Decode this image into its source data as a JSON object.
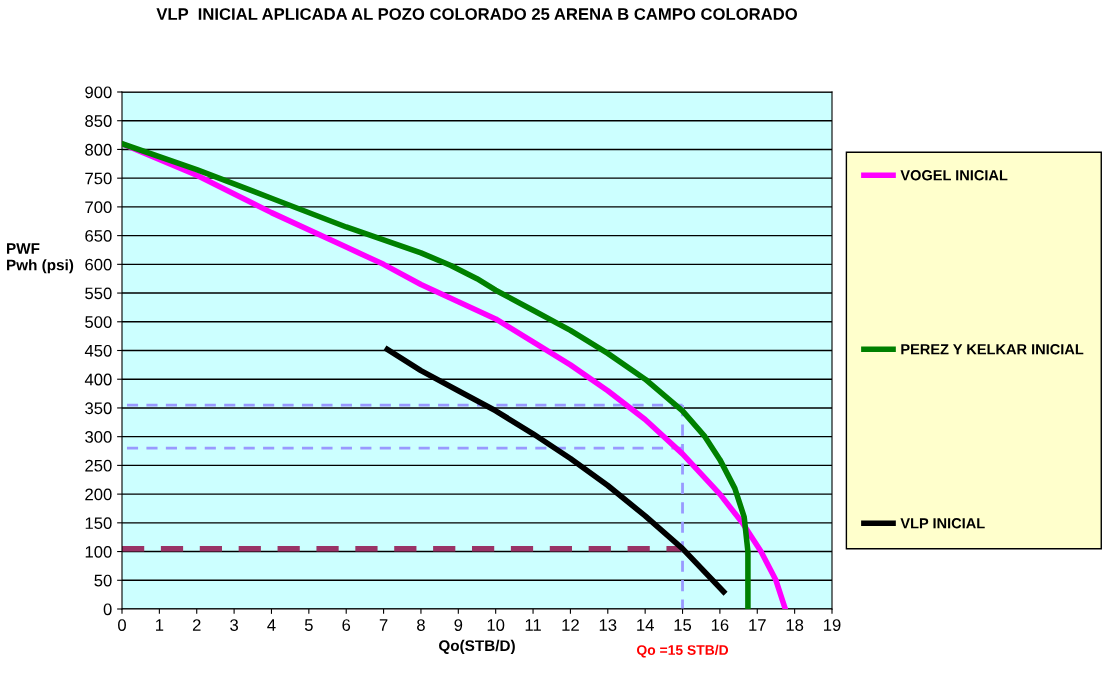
{
  "chart_data": {
    "type": "line",
    "title": "VLP  INICIAL APLICADA AL POZO COLORADO 25 ARENA B CAMPO COLORADO",
    "xlabel": "Qo(STB/D)",
    "ylabel": "PWF\nPwh (psi)",
    "xlim": [
      0,
      19
    ],
    "xticks": [
      0,
      1,
      2,
      3,
      4,
      5,
      6,
      7,
      8,
      9,
      10,
      11,
      12,
      13,
      14,
      15,
      16,
      17,
      18,
      19
    ],
    "ylim": [
      0,
      900
    ],
    "yticks": [
      0,
      50,
      100,
      150,
      200,
      250,
      300,
      350,
      400,
      450,
      500,
      550,
      600,
      650,
      700,
      750,
      800,
      850,
      900
    ],
    "grid": "y",
    "legend": "right",
    "marker": "none",
    "line_style": "solid",
    "series": [
      {
        "name": "VOGEL INICIAL",
        "color": "#ff00ff",
        "x": [
          0,
          2,
          4,
          6,
          7,
          8,
          9,
          10,
          11,
          12,
          13,
          14,
          15,
          16,
          16.6,
          17.1,
          17.5,
          17.75
        ],
        "values": [
          810,
          755,
          690,
          630,
          600,
          565,
          535,
          505,
          465,
          425,
          380,
          330,
          270,
          200,
          150,
          100,
          50,
          0
        ]
      },
      {
        "name": "PEREZ Y KELKAR INICIAL",
        "color": "#008000",
        "x": [
          0,
          2,
          4,
          6,
          8,
          8.8,
          9.5,
          10,
          11,
          12,
          13,
          14,
          15,
          15.6,
          16,
          16.4,
          16.65,
          16.75,
          16.75
        ],
        "values": [
          810,
          765,
          715,
          665,
          620,
          598,
          575,
          555,
          520,
          485,
          445,
          400,
          345,
          300,
          260,
          210,
          160,
          100,
          0
        ]
      },
      {
        "name": "VLP INICIAL",
        "color": "#000000",
        "x": [
          7.1,
          8,
          9,
          10,
          11,
          12,
          13,
          14,
          15,
          16.1
        ],
        "values": [
          452,
          415,
          380,
          345,
          305,
          262,
          215,
          162,
          105,
          30
        ]
      },
      {
        "color": "#993366",
        "line_style": "dashed",
        "x": [
          0,
          15
        ],
        "values": [
          105,
          105
        ]
      },
      {
        "color": "#9999ff",
        "line_style": "dashed",
        "x": [
          15,
          0
        ],
        "values": [
          355,
          355
        ]
      },
      {
        "color": "#9999ff",
        "line_style": "dashed",
        "x": [
          15,
          0
        ],
        "values": [
          280,
          280
        ]
      },
      {
        "color": "#9999ff",
        "line_style": "dashed",
        "x": [
          15,
          15
        ],
        "values": [
          355,
          0
        ]
      }
    ],
    "annotations": [
      {
        "text": "Qo =15 STB/D",
        "x": 15,
        "y": 0
      }
    ]
  }
}
